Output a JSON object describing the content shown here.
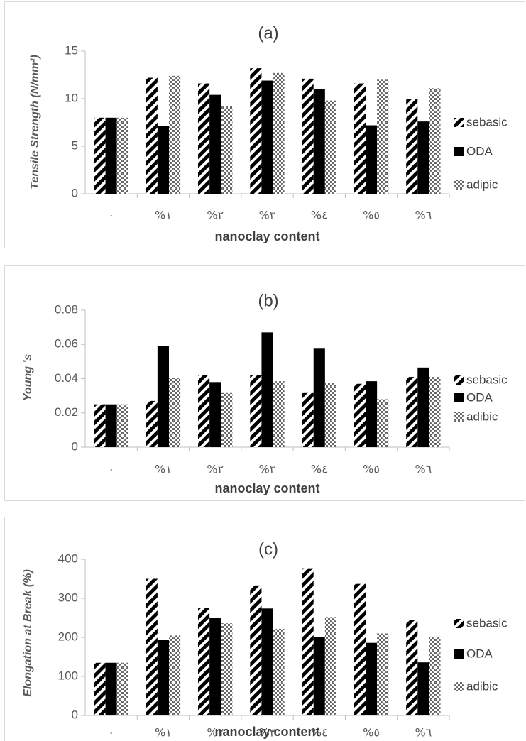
{
  "colors": {
    "axis": "#bfbfbf",
    "text": "#404040",
    "bar_dark": "#000000"
  },
  "chart_data": [
    {
      "type": "bar",
      "title": "(a)",
      "xlabel": "nanoclay content",
      "ylabel": "Tensile Strength (N/mm²)",
      "categories": [
        "٠",
        "%١",
        "%٢",
        "%٣",
        "%٤",
        "%٥",
        "%٦"
      ],
      "ylim": [
        0,
        15
      ],
      "yticks": [
        "0",
        "5",
        "10",
        "15"
      ],
      "grid": false,
      "legend_position": "right",
      "series": [
        {
          "name": "sebasic",
          "pattern": "diagonal-stripes",
          "values": [
            8,
            12.2,
            11.6,
            13.2,
            12.1,
            11.6,
            10
          ]
        },
        {
          "name": "ODA",
          "pattern": "solid",
          "values": [
            8,
            7.1,
            10.4,
            11.9,
            11,
            7.2,
            7.6
          ]
        },
        {
          "name": "adipic",
          "pattern": "checker",
          "values": [
            8,
            12.4,
            9.2,
            12.7,
            9.8,
            12,
            11.1
          ]
        }
      ]
    },
    {
      "type": "bar",
      "title": "(b)",
      "xlabel": "nanoclay content",
      "ylabel": "Young 's",
      "categories": [
        "٠",
        "%١",
        "%٢",
        "%٣",
        "%٤",
        "%٥",
        "%٦"
      ],
      "ylim": [
        0,
        0.08
      ],
      "yticks": [
        "0",
        "0.02",
        "0.04",
        "0.06",
        "0.08"
      ],
      "grid": false,
      "legend_position": "right",
      "series": [
        {
          "name": "sebasic",
          "pattern": "diagonal-stripes",
          "values": [
            0.025,
            0.027,
            0.042,
            0.042,
            0.032,
            0.037,
            0.041
          ]
        },
        {
          "name": "ODA",
          "pattern": "solid",
          "values": [
            0.025,
            0.059,
            0.038,
            0.067,
            0.0575,
            0.0385,
            0.0465
          ]
        },
        {
          "name": "adibic",
          "pattern": "checker",
          "values": [
            0.025,
            0.0405,
            0.032,
            0.0385,
            0.0375,
            0.028,
            0.041
          ]
        }
      ]
    },
    {
      "type": "bar",
      "title": "(c)",
      "xlabel": "nanoclay content",
      "ylabel": "Elongation at Break (%)",
      "categories": [
        "٠",
        "%١",
        "%٢",
        "%٣",
        "%٤",
        "%٥",
        "%٦"
      ],
      "ylim": [
        0,
        400
      ],
      "yticks": [
        "0",
        "100",
        "200",
        "300",
        "400"
      ],
      "grid": false,
      "legend_position": "right",
      "series": [
        {
          "name": "sebasic",
          "pattern": "diagonal-stripes",
          "values": [
            135,
            350,
            275,
            333,
            377,
            337,
            244
          ]
        },
        {
          "name": "ODA",
          "pattern": "solid",
          "values": [
            135,
            193,
            250,
            274,
            200,
            186,
            136
          ]
        },
        {
          "name": "adibic",
          "pattern": "checker",
          "values": [
            135,
            205,
            236,
            222,
            252,
            210,
            202
          ]
        }
      ]
    }
  ]
}
